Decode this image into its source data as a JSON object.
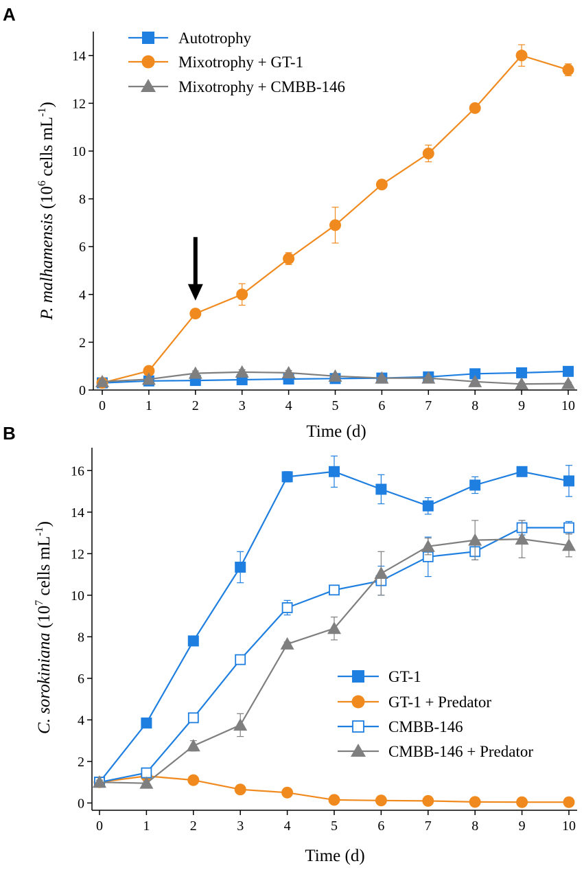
{
  "chart_data": [
    {
      "panel": "A",
      "type": "line",
      "xlabel": "Time (d)",
      "ylabel": {
        "italic": "P. malhamensis",
        "rest": " (10",
        "sup": "6",
        "rest2": " cells mL",
        "sup2": "-1",
        "end": ")"
      },
      "xlim": [
        0,
        10
      ],
      "ylim": [
        0,
        15
      ],
      "xticks": [
        0,
        1,
        2,
        3,
        4,
        5,
        6,
        7,
        8,
        9,
        10
      ],
      "yticks": [
        0,
        2,
        4,
        6,
        8,
        10,
        12,
        14
      ],
      "annotation": {
        "type": "arrow-down",
        "x": 2,
        "y_from": 6.4,
        "y_to": 3.8
      },
      "legend_position": "top-left",
      "series": [
        {
          "name": "Autotrophy",
          "color": "#1f7fe0",
          "marker": "square-filled",
          "x": [
            0,
            1,
            2,
            3,
            4,
            5,
            6,
            7,
            8,
            9,
            10
          ],
          "y": [
            0.3,
            0.38,
            0.4,
            0.43,
            0.46,
            0.48,
            0.5,
            0.55,
            0.68,
            0.72,
            0.78
          ],
          "err": [
            0.05,
            0.05,
            0.05,
            0.05,
            0.05,
            0.05,
            0.05,
            0.05,
            0.05,
            0.05,
            0.05
          ]
        },
        {
          "name": "Mixotrophy + GT-1",
          "color": "#f08a1e",
          "marker": "circle-filled",
          "x": [
            0,
            1,
            2,
            3,
            4,
            5,
            6,
            7,
            8,
            9,
            10
          ],
          "y": [
            0.3,
            0.8,
            3.2,
            4.0,
            5.5,
            6.9,
            8.6,
            9.9,
            11.8,
            14.0,
            13.4
          ],
          "err": [
            0.05,
            0.1,
            0.12,
            0.45,
            0.25,
            0.75,
            0.1,
            0.35,
            0.1,
            0.45,
            0.25
          ]
        },
        {
          "name": "Mixotrophy + CMBB-146",
          "color": "#7f7f7f",
          "marker": "triangle-filled",
          "x": [
            0,
            1,
            2,
            3,
            4,
            5,
            6,
            7,
            8,
            9,
            10
          ],
          "y": [
            0.35,
            0.45,
            0.7,
            0.75,
            0.72,
            0.58,
            0.5,
            0.5,
            0.35,
            0.25,
            0.27
          ],
          "err": [
            0.05,
            0.05,
            0.1,
            0.1,
            0.1,
            0.08,
            0.08,
            0.08,
            0.06,
            0.06,
            0.06
          ]
        }
      ]
    },
    {
      "panel": "B",
      "type": "line",
      "xlabel": "Time (d)",
      "ylabel": {
        "italic": "C. sorokiniana",
        "rest": " (10",
        "sup": "7",
        "rest2": " cells mL",
        "sup2": "-1",
        "end": ")"
      },
      "xlim": [
        0,
        10
      ],
      "ylim": [
        -0.35,
        17.1
      ],
      "xticks": [
        0,
        1,
        2,
        3,
        4,
        5,
        6,
        7,
        8,
        9,
        10
      ],
      "yticks": [
        0,
        2,
        4,
        6,
        8,
        10,
        12,
        14,
        16
      ],
      "legend_position": "bottom-right",
      "series": [
        {
          "name": "GT-1",
          "color": "#1f7fe0",
          "marker": "square-filled",
          "x": [
            0,
            1,
            2,
            3,
            4,
            5,
            6,
            7,
            8,
            9,
            10
          ],
          "y": [
            1.0,
            3.85,
            7.8,
            11.35,
            15.7,
            15.95,
            15.1,
            14.3,
            15.3,
            15.95,
            15.5
          ],
          "err": [
            0.1,
            0.1,
            0.15,
            0.75,
            0.25,
            0.75,
            0.7,
            0.4,
            0.4,
            0.2,
            0.75
          ]
        },
        {
          "name": "GT-1 + Predator",
          "color": "#f08a1e",
          "marker": "circle-filled",
          "x": [
            0,
            1,
            2,
            3,
            4,
            5,
            6,
            7,
            8,
            9,
            10
          ],
          "y": [
            1.0,
            1.3,
            1.1,
            0.65,
            0.5,
            0.15,
            0.12,
            0.1,
            0.05,
            0.04,
            0.04
          ],
          "err": [
            0.05,
            0.05,
            0.05,
            0.05,
            0.05,
            0.03,
            0.03,
            0.03,
            0.03,
            0.03,
            0.03
          ]
        },
        {
          "name": "CMBB-146",
          "color": "#1f7fe0",
          "marker": "square-open",
          "x": [
            0,
            1,
            2,
            3,
            4,
            5,
            6,
            7,
            8,
            9,
            10
          ],
          "y": [
            1.0,
            1.45,
            4.1,
            6.9,
            9.4,
            10.25,
            10.7,
            11.85,
            12.1,
            13.25,
            13.25
          ],
          "err": [
            0.1,
            0.15,
            0.2,
            0.2,
            0.35,
            0.15,
            0.7,
            0.95,
            0.4,
            0.35,
            0.3
          ]
        },
        {
          "name": "CMBB-146 + Predator",
          "color": "#7f7f7f",
          "marker": "triangle-filled",
          "x": [
            0,
            1,
            2,
            3,
            4,
            5,
            6,
            7,
            8,
            9,
            10
          ],
          "y": [
            1.0,
            0.95,
            2.75,
            3.75,
            7.65,
            8.4,
            11.05,
            12.35,
            12.65,
            12.7,
            12.4
          ],
          "err": [
            0.1,
            0.1,
            0.25,
            0.55,
            0.1,
            0.55,
            1.05,
            0.4,
            0.95,
            0.9,
            0.55
          ]
        }
      ]
    }
  ]
}
